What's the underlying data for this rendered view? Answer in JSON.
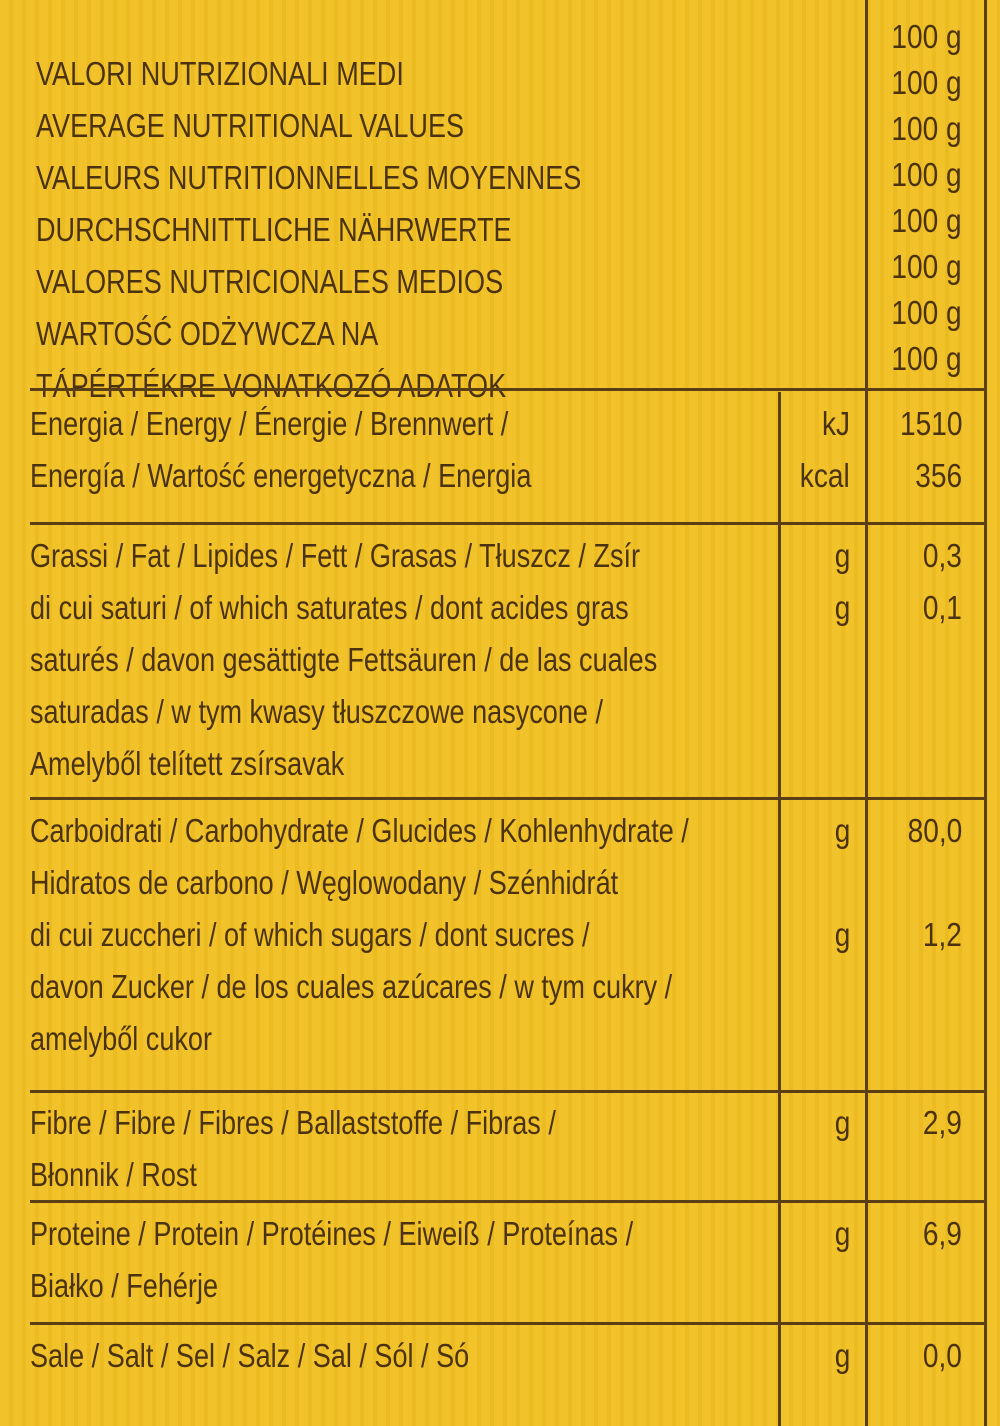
{
  "header": {
    "lines": [
      "VALORI NUTRIZIONALI MEDI",
      "AVERAGE NUTRITIONAL VALUES",
      "VALEURS NUTRITIONNELLES MOYENNES",
      "DURCHSCHNITTLICHE NÄHRWERTE",
      "VALORES NUTRICIONALES MEDIOS",
      "WARTOŚĆ ODŻYWCZA NA",
      "TÁPÉRTÉKRE VONATKOZÓ ADATOK"
    ],
    "per": [
      "100 g",
      "100 g",
      "100 g",
      "100 g",
      "100 g",
      "100 g",
      "100 g",
      "100 g"
    ]
  },
  "rows": [
    {
      "lines": [
        "Energia / Energy / Énergie / Brennwert  /",
        "Energía / Wartość energetyczna / Energia"
      ],
      "entries": [
        {
          "unit": "kJ",
          "value": "1510"
        },
        {
          "unit": "kcal",
          "value": "356"
        }
      ]
    },
    {
      "lines": [
        "Grassi / Fat / Lipides / Fett / Grasas / Tłuszcz / Zsír",
        "di cui saturi / of which saturates / dont acides gras",
        "saturés / davon gesättigte Fettsäuren / de las cuales",
        "saturadas / w tym kwasy tłuszczowe nasycone /",
        "Amelyből telített zsírsavak"
      ],
      "entries": [
        {
          "unit": "g",
          "value": "0,3"
        },
        {
          "unit": "g",
          "value": "0,1"
        }
      ]
    },
    {
      "lines": [
        "Carboidrati / Carbohydrate / Glucides / Kohlenhydrate /",
        "Hidratos de carbono / Węglowodany / Szénhidrát",
        "di cui zuccheri / of which sugars / dont  sucres /",
        "davon Zucker / de los cuales azúcares / w tym cukry /",
        "amelyből cukor"
      ],
      "entries": [
        {
          "unit": "g",
          "value": "80,0"
        },
        {
          "unit": "g",
          "value": "1,2",
          "line": 2
        }
      ]
    },
    {
      "lines": [
        "Fibre / Fibre / Fibres / Ballaststoffe / Fibras /",
        "Błonnik / Rost"
      ],
      "entries": [
        {
          "unit": "g",
          "value": "2,9"
        }
      ]
    },
    {
      "lines": [
        "Proteine / Protein / Protéines / Eiweiß / Proteínas /",
        "Białko / Fehérje"
      ],
      "entries": [
        {
          "unit": "g",
          "value": "6,9"
        }
      ]
    },
    {
      "lines": [
        "Sale / Salt / Sel / Salz / Sal / Sól / Só"
      ],
      "entries": [
        {
          "unit": "g",
          "value": "0,0"
        }
      ]
    }
  ],
  "colors": {
    "background": "#f1c22a",
    "ink": "#4b3312"
  }
}
